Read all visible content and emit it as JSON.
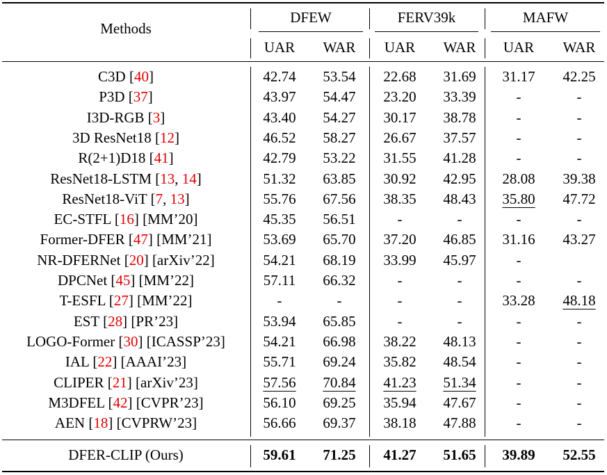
{
  "header": {
    "methods_label": "Methods",
    "datasets": [
      "DFEW",
      "FERV39k",
      "MAFW"
    ],
    "metrics": [
      "UAR",
      "WAR",
      "UAR",
      "WAR",
      "UAR",
      "WAR"
    ]
  },
  "rows": [
    {
      "name": "C3D",
      "refs": [
        "40"
      ],
      "venue": "",
      "values": [
        "42.74",
        "53.54",
        "22.68",
        "31.69",
        "31.17",
        "42.25"
      ],
      "underline": []
    },
    {
      "name": "P3D",
      "refs": [
        "37"
      ],
      "venue": "",
      "values": [
        "43.97",
        "54.47",
        "23.20",
        "33.39",
        "-",
        "-"
      ],
      "underline": []
    },
    {
      "name": "I3D-RGB",
      "refs": [
        "3"
      ],
      "venue": "",
      "values": [
        "43.40",
        "54.27",
        "30.17",
        "38.78",
        "-",
        "-"
      ],
      "underline": []
    },
    {
      "name": "3D ResNet18",
      "refs": [
        "12"
      ],
      "venue": "",
      "values": [
        "46.52",
        "58.27",
        "26.67",
        "37.57",
        "-",
        "-"
      ],
      "underline": []
    },
    {
      "name": "R(2+1)D18",
      "refs": [
        "41"
      ],
      "venue": "",
      "values": [
        "42.79",
        "53.22",
        "31.55",
        "41.28",
        "-",
        "-"
      ],
      "underline": []
    },
    {
      "name": "ResNet18-LSTM",
      "refs": [
        "13",
        "14"
      ],
      "venue": "",
      "values": [
        "51.32",
        "63.85",
        "30.92",
        "42.95",
        "28.08",
        "39.38"
      ],
      "underline": []
    },
    {
      "name": "ResNet18-ViT",
      "refs": [
        "7",
        "13"
      ],
      "venue": "",
      "values": [
        "55.76",
        "67.56",
        "38.35",
        "48.43",
        "35.80",
        "47.72"
      ],
      "underline": [
        4
      ]
    },
    {
      "name": "EC-STFL",
      "refs": [
        "16"
      ],
      "venue": "[MM’20]",
      "values": [
        "45.35",
        "56.51",
        "-",
        "-",
        "-",
        "-"
      ],
      "underline": []
    },
    {
      "name": "Former-DFER",
      "refs": [
        "47"
      ],
      "venue": "[MM’21]",
      "values": [
        "53.69",
        "65.70",
        "37.20",
        "46.85",
        "31.16",
        "43.27"
      ],
      "underline": []
    },
    {
      "name": "NR-DFERNet",
      "refs": [
        "20"
      ],
      "venue": "[arXiv’22]",
      "values": [
        "54.21",
        "68.19",
        "33.99",
        "45.97",
        "-",
        ""
      ],
      "underline": []
    },
    {
      "name": "DPCNet",
      "refs": [
        "45"
      ],
      "venue": "[MM’22]",
      "values": [
        "57.11",
        "66.32",
        "-",
        "-",
        "-",
        "-"
      ],
      "underline": []
    },
    {
      "name": "T-ESFL",
      "refs": [
        "27"
      ],
      "venue": "[MM’22]",
      "values": [
        "-",
        "-",
        "-",
        "-",
        "33.28",
        "48.18"
      ],
      "underline": [
        5
      ]
    },
    {
      "name": "EST",
      "refs": [
        "28"
      ],
      "venue": "[PR’23]",
      "values": [
        "53.94",
        "65.85",
        "-",
        "-",
        "-",
        "-"
      ],
      "underline": []
    },
    {
      "name": "LOGO-Former",
      "refs": [
        "30"
      ],
      "venue": "[ICASSP’23]",
      "values": [
        "54.21",
        "66.98",
        "38.22",
        "48.13",
        "-",
        "-"
      ],
      "underline": []
    },
    {
      "name": "IAL",
      "refs": [
        "22"
      ],
      "venue": "[AAAI’23]",
      "values": [
        "55.71",
        "69.24",
        "35.82",
        "48.54",
        "-",
        "-"
      ],
      "underline": []
    },
    {
      "name": "CLIPER",
      "refs": [
        "21"
      ],
      "venue": "[arXiv’23]",
      "values": [
        "57.56",
        "70.84",
        "41.23",
        "51.34",
        "-",
        "-"
      ],
      "underline": [
        0,
        1,
        2,
        3
      ]
    },
    {
      "name": "M3DFEL",
      "refs": [
        "42"
      ],
      "venue": "[CVPR’23]",
      "values": [
        "56.10",
        "69.25",
        "35.94",
        "47.67",
        "-",
        "-"
      ],
      "underline": []
    },
    {
      "name": "AEN",
      "refs": [
        "18"
      ],
      "venue": "[CVPRW’23]",
      "values": [
        "56.66",
        "69.37",
        "38.18",
        "47.88",
        "-",
        "-"
      ],
      "underline": []
    }
  ],
  "ours": {
    "name": "DFER-CLIP (Ours)",
    "values": [
      "59.61",
      "71.25",
      "41.27",
      "51.65",
      "39.89",
      "52.55"
    ]
  }
}
